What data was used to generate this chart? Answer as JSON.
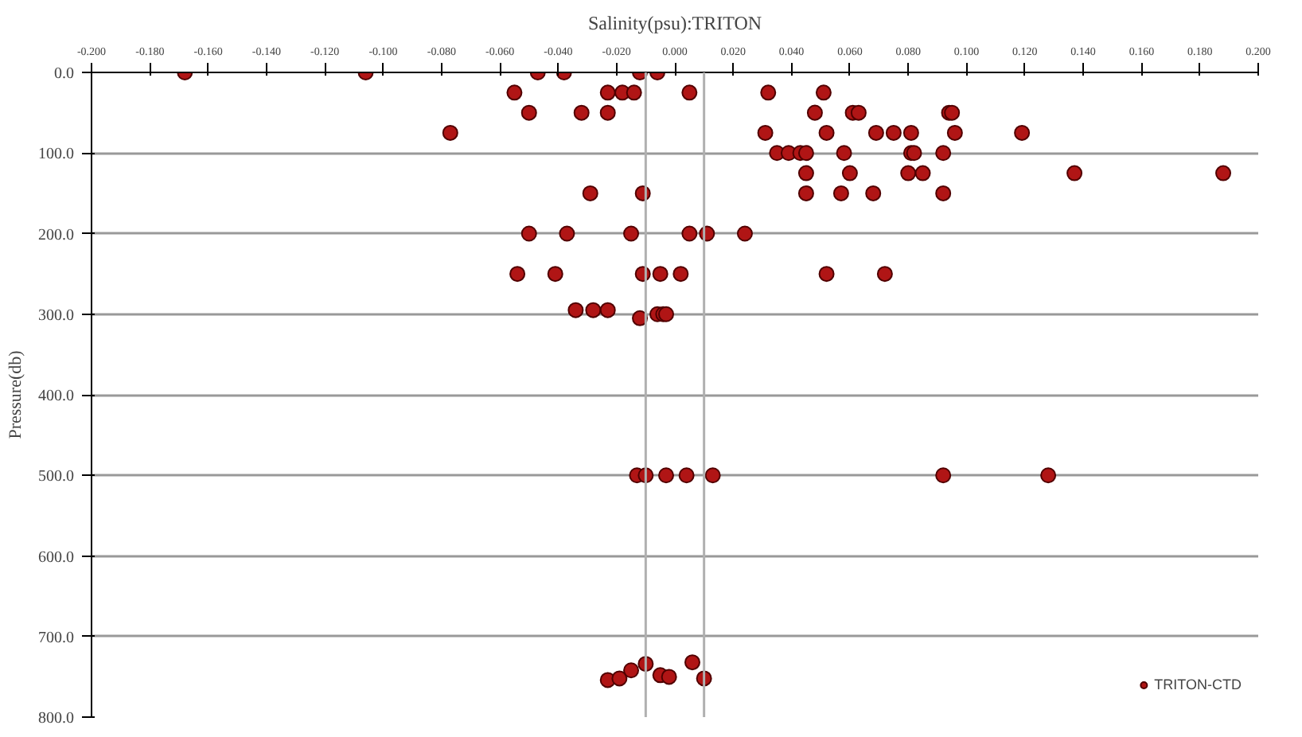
{
  "chart_data": {
    "type": "scatter",
    "title": "Salinity(psu):TRITON",
    "ylabel": "Pressure(db)",
    "series": [
      {
        "name": "TRITON-CTD",
        "color": "#b01515",
        "x": [
          -0.168,
          -0.106,
          -0.047,
          -0.038,
          -0.012,
          -0.006,
          -0.055,
          -0.023,
          -0.018,
          -0.014,
          0.005,
          0.032,
          0.051,
          -0.05,
          -0.032,
          -0.023,
          0.048,
          0.061,
          0.063,
          0.094,
          0.095,
          -0.077,
          0.031,
          0.052,
          0.069,
          0.075,
          0.081,
          0.096,
          0.119,
          0.035,
          0.039,
          0.043,
          0.045,
          0.058,
          0.081,
          0.082,
          0.092,
          0.045,
          0.06,
          0.08,
          0.085,
          0.137,
          0.188,
          -0.029,
          -0.011,
          0.045,
          0.057,
          0.068,
          0.092,
          -0.05,
          -0.037,
          -0.015,
          0.005,
          0.011,
          0.024,
          -0.054,
          -0.041,
          -0.011,
          -0.005,
          0.002,
          0.052,
          0.072,
          -0.034,
          -0.028,
          -0.023,
          -0.012,
          -0.006,
          -0.004,
          -0.003,
          -0.013,
          -0.01,
          -0.003,
          0.004,
          0.013,
          0.092,
          0.128,
          -0.023,
          -0.019,
          -0.015,
          -0.01,
          -0.005,
          -0.002,
          0.006,
          0.01
        ],
        "values": [
          0,
          0,
          0,
          0,
          0,
          0,
          25,
          25,
          25,
          25,
          25,
          25,
          25,
          50,
          50,
          50,
          50,
          50,
          50,
          50,
          50,
          75,
          75,
          75,
          75,
          75,
          75,
          75,
          75,
          100,
          100,
          100,
          100,
          100,
          100,
          100,
          100,
          125,
          125,
          125,
          125,
          125,
          125,
          150,
          150,
          150,
          150,
          150,
          150,
          200,
          200,
          200,
          200,
          200,
          200,
          250,
          250,
          250,
          250,
          250,
          250,
          250,
          295,
          295,
          295,
          305,
          300,
          300,
          300,
          500,
          500,
          500,
          500,
          500,
          500,
          500,
          754,
          752,
          742,
          734,
          748,
          750,
          732,
          752
        ]
      }
    ],
    "xlim": [
      -0.2,
      0.2
    ],
    "xticks": [
      {
        "value": -0.2,
        "label": "-0.200"
      },
      {
        "value": -0.18,
        "label": "-0.180"
      },
      {
        "value": -0.16,
        "label": "-0.160"
      },
      {
        "value": -0.14,
        "label": "-0.140"
      },
      {
        "value": -0.12,
        "label": "-0.120"
      },
      {
        "value": -0.1,
        "label": "-0.100"
      },
      {
        "value": -0.08,
        "label": "-0.080"
      },
      {
        "value": -0.06,
        "label": "-0.060"
      },
      {
        "value": -0.04,
        "label": "-0.040"
      },
      {
        "value": -0.02,
        "label": "-0.020"
      },
      {
        "value": 0,
        "label": "0.000"
      },
      {
        "value": 0.02,
        "label": "0.020"
      },
      {
        "value": 0.04,
        "label": "0.040"
      },
      {
        "value": 0.06,
        "label": "0.060"
      },
      {
        "value": 0.08,
        "label": "0.080"
      },
      {
        "value": 0.1,
        "label": "0.100"
      },
      {
        "value": 0.12,
        "label": "0.120"
      },
      {
        "value": 0.14,
        "label": "0.140"
      },
      {
        "value": 0.16,
        "label": "0.160"
      },
      {
        "value": 0.18,
        "label": "0.180"
      },
      {
        "value": 0.2,
        "label": "0.200"
      }
    ],
    "ylim": [
      800,
      0
    ],
    "yticks": [
      {
        "value": 0,
        "label": "0.0"
      },
      {
        "value": 100,
        "label": "100.0"
      },
      {
        "value": 200,
        "label": "200.0"
      },
      {
        "value": 300,
        "label": "300.0"
      },
      {
        "value": 400,
        "label": "400.0"
      },
      {
        "value": 500,
        "label": "500.0"
      },
      {
        "value": 600,
        "label": "600.0"
      },
      {
        "value": 700,
        "label": "700.0"
      },
      {
        "value": 800,
        "label": "800.0"
      }
    ],
    "ref_lines": [
      {
        "axis": "x",
        "value": -0.01,
        "color": "#b0b0b0"
      },
      {
        "axis": "x",
        "value": 0.01,
        "color": "#b0b0b0"
      }
    ],
    "grid": "y",
    "legend": "bottom right",
    "marker": "circle"
  }
}
